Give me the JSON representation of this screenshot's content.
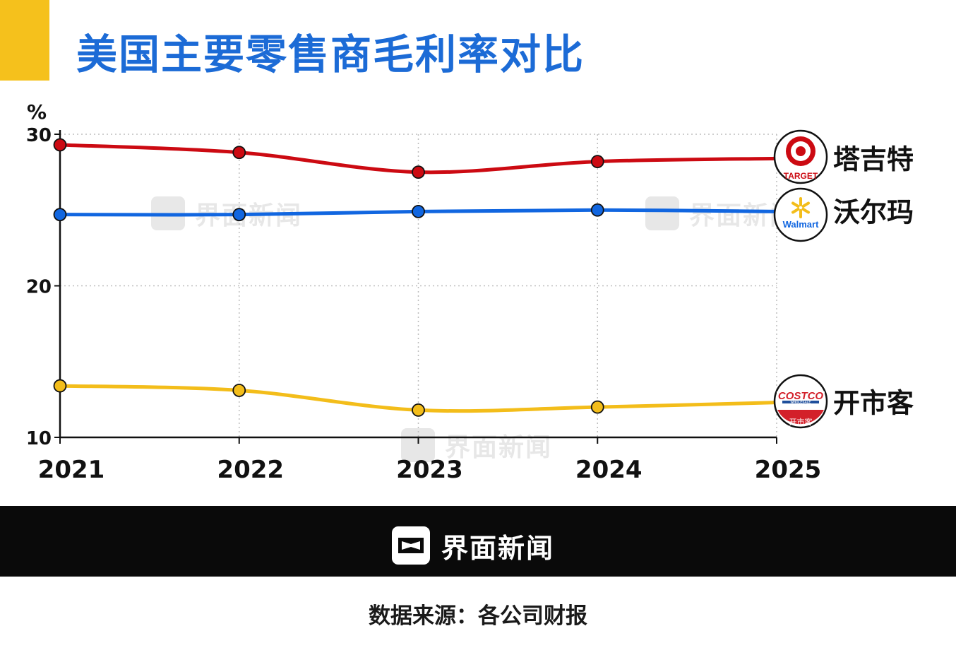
{
  "title": "美国主要零售商毛利率对比",
  "unit_label": "%",
  "source": "数据来源：各公司财报",
  "brand": "界面新闻",
  "watermark_text": "界面新闻",
  "colors": {
    "accent": "#f5c11c",
    "title": "#1c6bd6",
    "target": "#cc0a12",
    "walmart": "#1166e0",
    "costco": "#f3bd1a",
    "footer": "#0a0a0a"
  },
  "logos": {
    "target_text": "TARGET",
    "walmart_text": "Walmart",
    "costco_text": "COSTCO",
    "costco_sub": "WHOLESALE",
    "costco_cn": "开市客"
  },
  "chart_data": {
    "type": "line",
    "title": "美国主要零售商毛利率对比",
    "ylabel": "%",
    "xlabel": "",
    "x": [
      "2021",
      "2022",
      "2023",
      "2024",
      "2025"
    ],
    "ylim": [
      10,
      30
    ],
    "yticks": [
      10,
      20,
      30
    ],
    "grid": true,
    "legend": "right, at line ends",
    "series": [
      {
        "name": "塔吉特",
        "color": "#cc0a12",
        "values": [
          29.3,
          28.8,
          27.5,
          28.2,
          28.4
        ],
        "marked": [
          true,
          true,
          true,
          true,
          false
        ]
      },
      {
        "name": "沃尔玛",
        "color": "#1166e0",
        "values": [
          24.7,
          24.7,
          24.9,
          25.0,
          24.9
        ],
        "marked": [
          true,
          true,
          true,
          true,
          false
        ]
      },
      {
        "name": "开市客",
        "color": "#f3bd1a",
        "values": [
          13.4,
          13.1,
          11.8,
          12.0,
          12.3
        ],
        "marked": [
          true,
          true,
          true,
          true,
          false
        ]
      }
    ]
  }
}
